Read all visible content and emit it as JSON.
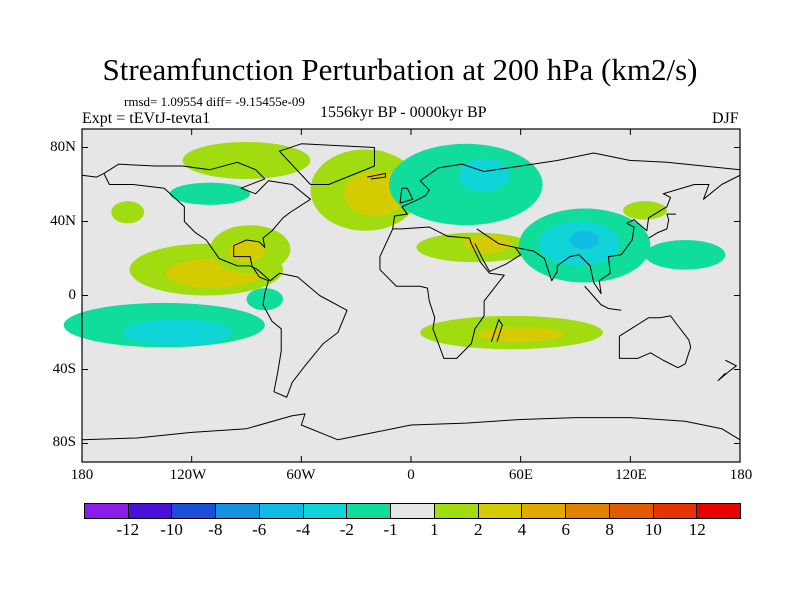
{
  "title": "Streamfunction Perturbation at 200 hPa (km2/s)",
  "stats": "rmsd= 1.09554 diff= -9.15455e-09",
  "experiment": "Expt = tEVtJ-tevta1",
  "period": "1556kyr BP - 0000kyr BP",
  "season": "DJF",
  "lat_labels": [
    "80N",
    "40N",
    "0",
    "40S",
    "80S"
  ],
  "lon_labels": [
    "180",
    "120W",
    "60W",
    "0",
    "60E",
    "120E",
    "180"
  ],
  "colorbar": {
    "labels": [
      "-12",
      "-10",
      "-8",
      "-6",
      "-4",
      "-2",
      "-1",
      "1",
      "2",
      "4",
      "6",
      "8",
      "10",
      "12"
    ],
    "colors": [
      "#8c1ce8",
      "#4a10d8",
      "#1a50d8",
      "#1494dc",
      "#10bce4",
      "#10d4d8",
      "#10dc9c",
      "#e6e6e6",
      "#a0dc10",
      "#d4cc00",
      "#e0aa00",
      "#e08200",
      "#e05a00",
      "#e83200",
      "#e80000"
    ]
  },
  "map_background": "#e6e6e6",
  "anomalies": [
    {
      "lon": -112,
      "lat": 14,
      "rx": 42,
      "ry": 14,
      "level": 8
    },
    {
      "lon": -108,
      "lat": 12,
      "rx": 26,
      "ry": 8,
      "level": 9
    },
    {
      "lon": -88,
      "lat": 25,
      "rx": 22,
      "ry": 13,
      "level": 8
    },
    {
      "lon": -90,
      "lat": 24,
      "rx": 10,
      "ry": 6,
      "level": 9
    },
    {
      "lon": -90,
      "lat": 73,
      "rx": 35,
      "ry": 10,
      "level": 8
    },
    {
      "lon": -25,
      "lat": 57,
      "rx": 30,
      "ry": 22,
      "level": 8
    },
    {
      "lon": -20,
      "lat": 55,
      "rx": 17,
      "ry": 12,
      "level": 9
    },
    {
      "lon": -155,
      "lat": 45,
      "rx": 9,
      "ry": 6,
      "level": 8
    },
    {
      "lon": -110,
      "lat": 55,
      "rx": 22,
      "ry": 6,
      "level": 6
    },
    {
      "lon": 30,
      "lat": 60,
      "rx": 42,
      "ry": 22,
      "level": 6
    },
    {
      "lon": 40,
      "lat": 65,
      "rx": 14,
      "ry": 9,
      "level": 5
    },
    {
      "lon": 35,
      "lat": 26,
      "rx": 32,
      "ry": 8,
      "level": 8
    },
    {
      "lon": 42,
      "lat": 28,
      "rx": 13,
      "ry": 5,
      "level": 9
    },
    {
      "lon": 95,
      "lat": 27,
      "rx": 36,
      "ry": 20,
      "level": 6
    },
    {
      "lon": 92,
      "lat": 28,
      "rx": 22,
      "ry": 12,
      "level": 5
    },
    {
      "lon": 95,
      "lat": 30,
      "rx": 8,
      "ry": 5,
      "level": 4
    },
    {
      "lon": 150,
      "lat": 22,
      "rx": 22,
      "ry": 8,
      "level": 6
    },
    {
      "lon": 128,
      "lat": 46,
      "rx": 12,
      "ry": 5,
      "level": 8
    },
    {
      "lon": -135,
      "lat": -16,
      "rx": 55,
      "ry": 12,
      "level": 6
    },
    {
      "lon": -128,
      "lat": -20,
      "rx": 30,
      "ry": 7,
      "level": 5
    },
    {
      "lon": -80,
      "lat": -2,
      "rx": 10,
      "ry": 6,
      "level": 6
    },
    {
      "lon": 55,
      "lat": -20,
      "rx": 50,
      "ry": 9,
      "level": 8
    },
    {
      "lon": 60,
      "lat": -21,
      "rx": 24,
      "ry": 4,
      "level": 9
    }
  ]
}
